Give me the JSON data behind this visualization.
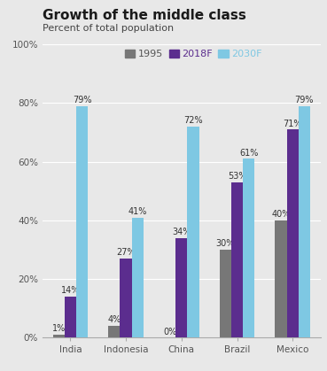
{
  "title": "Growth of the middle class",
  "subtitle": "Percent of total population",
  "categories": [
    "India",
    "Indonesia",
    "China",
    "Brazil",
    "Mexico"
  ],
  "series": [
    {
      "label": "1995",
      "color": "#777777",
      "values": [
        1,
        4,
        0,
        30,
        40
      ]
    },
    {
      "label": "2018F",
      "color": "#5b2d8e",
      "values": [
        14,
        27,
        34,
        53,
        71
      ]
    },
    {
      "label": "2030F",
      "color": "#7ec8e3",
      "values": [
        79,
        41,
        72,
        61,
        79
      ]
    }
  ],
  "ylim": [
    0,
    100
  ],
  "yticks": [
    0,
    20,
    40,
    60,
    80,
    100
  ],
  "ytick_labels": [
    "0%",
    "20%",
    "40%",
    "60%",
    "80%",
    "100%"
  ],
  "background_color": "#e8e8e8",
  "title_fontsize": 11,
  "subtitle_fontsize": 8,
  "bar_width": 0.21,
  "value_label_fontsize": 7,
  "legend_fontsize": 8,
  "axis_label_color": "#555555",
  "tick_label_fontsize": 7.5
}
